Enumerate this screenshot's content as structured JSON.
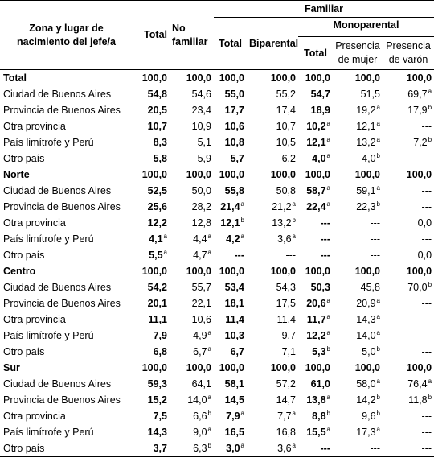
{
  "header": {
    "zona": "Zona y lugar de nacimiento del jefe/a",
    "total": "Total",
    "no_familiar": "No familiar",
    "familiar": "Familiar",
    "fam_total": "Total",
    "biparental": "Biparental",
    "monoparental": "Monoparental",
    "mono_total": "Total",
    "presencia_mujer": "Presencia de mujer",
    "presencia_varon": "Presencia de varón"
  },
  "rows": [
    {
      "label": "Total",
      "section": true,
      "cells": [
        [
          "100,0",
          ""
        ],
        [
          "100,0",
          ""
        ],
        [
          "100,0",
          ""
        ],
        [
          "100,0",
          ""
        ],
        [
          "100,0",
          ""
        ],
        [
          "100,0",
          ""
        ],
        [
          "100,0",
          ""
        ]
      ]
    },
    {
      "label": "Ciudad de Buenos Aires",
      "cells": [
        [
          "54,8",
          ""
        ],
        [
          "54,6",
          ""
        ],
        [
          "55,0",
          ""
        ],
        [
          "55,2",
          ""
        ],
        [
          "54,7",
          ""
        ],
        [
          "51,5",
          ""
        ],
        [
          "69,7",
          "a"
        ]
      ]
    },
    {
      "label": "Provincia de Buenos Aires",
      "cells": [
        [
          "20,5",
          ""
        ],
        [
          "23,4",
          ""
        ],
        [
          "17,7",
          ""
        ],
        [
          "17,4",
          ""
        ],
        [
          "18,9",
          ""
        ],
        [
          "19,2",
          "a"
        ],
        [
          "17,9",
          "b"
        ]
      ]
    },
    {
      "label": "Otra provincia",
      "cells": [
        [
          "10,7",
          ""
        ],
        [
          "10,9",
          ""
        ],
        [
          "10,6",
          ""
        ],
        [
          "10,7",
          ""
        ],
        [
          "10,2",
          "a"
        ],
        [
          "12,1",
          "a"
        ],
        [
          "---",
          ""
        ]
      ]
    },
    {
      "label": "País limítrofe y Perú",
      "cells": [
        [
          "8,3",
          ""
        ],
        [
          "5,1",
          ""
        ],
        [
          "10,8",
          ""
        ],
        [
          "10,5",
          ""
        ],
        [
          "12,1",
          "a"
        ],
        [
          "13,2",
          "a"
        ],
        [
          "7,2",
          "b"
        ]
      ]
    },
    {
      "label": "Otro país",
      "cells": [
        [
          "5,8",
          ""
        ],
        [
          "5,9",
          ""
        ],
        [
          "5,7",
          ""
        ],
        [
          "6,2",
          ""
        ],
        [
          "4,0",
          "a"
        ],
        [
          "4,0",
          "b"
        ],
        [
          "---",
          ""
        ]
      ]
    },
    {
      "label": "Norte",
      "section": true,
      "cells": [
        [
          "100,0",
          ""
        ],
        [
          "100,0",
          ""
        ],
        [
          "100,0",
          ""
        ],
        [
          "100,0",
          ""
        ],
        [
          "100,0",
          ""
        ],
        [
          "100,0",
          ""
        ],
        [
          "100,0",
          ""
        ]
      ]
    },
    {
      "label": "Ciudad de Buenos Aires",
      "cells": [
        [
          "52,5",
          ""
        ],
        [
          "50,0",
          ""
        ],
        [
          "55,8",
          ""
        ],
        [
          "50,8",
          ""
        ],
        [
          "58,7",
          "a"
        ],
        [
          "59,1",
          "a"
        ],
        [
          "---",
          ""
        ]
      ]
    },
    {
      "label": "Provincia de Buenos Aires",
      "cells": [
        [
          "25,6",
          ""
        ],
        [
          "28,2",
          ""
        ],
        [
          "21,4",
          "a"
        ],
        [
          "21,2",
          "a"
        ],
        [
          "22,4",
          "a"
        ],
        [
          "22,3",
          "b"
        ],
        [
          "---",
          ""
        ]
      ]
    },
    {
      "label": "Otra provincia",
      "cells": [
        [
          "12,2",
          ""
        ],
        [
          "12,8",
          ""
        ],
        [
          "12,1",
          "b"
        ],
        [
          "13,2",
          "b"
        ],
        [
          "---",
          ""
        ],
        [
          "---",
          ""
        ],
        [
          "0,0",
          ""
        ]
      ]
    },
    {
      "label": "País limítrofe y Perú",
      "cells": [
        [
          "4,1",
          "a"
        ],
        [
          "4,4",
          "a"
        ],
        [
          "4,2",
          "a"
        ],
        [
          "3,6",
          "a"
        ],
        [
          "---",
          ""
        ],
        [
          "---",
          ""
        ],
        [
          "---",
          ""
        ]
      ]
    },
    {
      "label": "Otro país",
      "cells": [
        [
          "5,5",
          "a"
        ],
        [
          "4,7",
          "a"
        ],
        [
          "---",
          ""
        ],
        [
          "---",
          ""
        ],
        [
          "---",
          ""
        ],
        [
          "---",
          ""
        ],
        [
          "0,0",
          ""
        ]
      ]
    },
    {
      "label": "Centro",
      "section": true,
      "cells": [
        [
          "100,0",
          ""
        ],
        [
          "100,0",
          ""
        ],
        [
          "100,0",
          ""
        ],
        [
          "100,0",
          ""
        ],
        [
          "100,0",
          ""
        ],
        [
          "100,0",
          ""
        ],
        [
          "100,0",
          ""
        ]
      ]
    },
    {
      "label": "Ciudad de Buenos Aires",
      "cells": [
        [
          "54,2",
          ""
        ],
        [
          "55,7",
          ""
        ],
        [
          "53,4",
          ""
        ],
        [
          "54,3",
          ""
        ],
        [
          "50,3",
          ""
        ],
        [
          "45,8",
          ""
        ],
        [
          "70,0",
          "b"
        ]
      ]
    },
    {
      "label": "Provincia de Buenos Aires",
      "cells": [
        [
          "20,1",
          ""
        ],
        [
          "22,1",
          ""
        ],
        [
          "18,1",
          ""
        ],
        [
          "17,5",
          ""
        ],
        [
          "20,6",
          "a"
        ],
        [
          "20,9",
          "a"
        ],
        [
          "---",
          ""
        ]
      ]
    },
    {
      "label": "Otra provincia",
      "cells": [
        [
          "11,1",
          ""
        ],
        [
          "10,6",
          ""
        ],
        [
          "11,4",
          ""
        ],
        [
          "11,4",
          ""
        ],
        [
          "11,7",
          "a"
        ],
        [
          "14,3",
          "a"
        ],
        [
          "---",
          ""
        ]
      ]
    },
    {
      "label": "País limítrofe y Perú",
      "cells": [
        [
          "7,9",
          ""
        ],
        [
          "4,9",
          "a"
        ],
        [
          "10,3",
          ""
        ],
        [
          "9,7",
          ""
        ],
        [
          "12,2",
          "a"
        ],
        [
          "14,0",
          "a"
        ],
        [
          "---",
          ""
        ]
      ]
    },
    {
      "label": "Otro país",
      "cells": [
        [
          "6,8",
          ""
        ],
        [
          "6,7",
          "a"
        ],
        [
          "6,7",
          ""
        ],
        [
          "7,1",
          ""
        ],
        [
          "5,3",
          "b"
        ],
        [
          "5,0",
          "b"
        ],
        [
          "---",
          ""
        ]
      ]
    },
    {
      "label": "Sur",
      "section": true,
      "cells": [
        [
          "100,0",
          ""
        ],
        [
          "100,0",
          ""
        ],
        [
          "100,0",
          ""
        ],
        [
          "100,0",
          ""
        ],
        [
          "100,0",
          ""
        ],
        [
          "100,0",
          ""
        ],
        [
          "100,0",
          ""
        ]
      ]
    },
    {
      "label": "Ciudad de Buenos Aires",
      "cells": [
        [
          "59,3",
          ""
        ],
        [
          "64,1",
          ""
        ],
        [
          "58,1",
          ""
        ],
        [
          "57,2",
          ""
        ],
        [
          "61,0",
          ""
        ],
        [
          "58,0",
          "a"
        ],
        [
          "76,4",
          "a"
        ]
      ]
    },
    {
      "label": "Provincia de Buenos Aires",
      "cells": [
        [
          "15,2",
          ""
        ],
        [
          "14,0",
          "a"
        ],
        [
          "14,5",
          ""
        ],
        [
          "14,7",
          ""
        ],
        [
          "13,8",
          "a"
        ],
        [
          "14,2",
          "b"
        ],
        [
          "11,8",
          "b"
        ]
      ]
    },
    {
      "label": "Otra provincia",
      "cells": [
        [
          "7,5",
          ""
        ],
        [
          "6,6",
          "b"
        ],
        [
          "7,9",
          "a"
        ],
        [
          "7,7",
          "a"
        ],
        [
          "8,8",
          "b"
        ],
        [
          "9,6",
          "b"
        ],
        [
          "---",
          ""
        ]
      ]
    },
    {
      "label": "País limítrofe y Perú",
      "cells": [
        [
          "14,3",
          ""
        ],
        [
          "9,0",
          "a"
        ],
        [
          "16,5",
          ""
        ],
        [
          "16,8",
          ""
        ],
        [
          "15,5",
          "a"
        ],
        [
          "17,3",
          "a"
        ],
        [
          "---",
          ""
        ]
      ]
    },
    {
      "label": "Otro país",
      "cells": [
        [
          "3,7",
          ""
        ],
        [
          "6,3",
          "b"
        ],
        [
          "3,0",
          "a"
        ],
        [
          "3,6",
          "a"
        ],
        [
          "---",
          ""
        ],
        [
          "---",
          ""
        ],
        [
          "---",
          ""
        ]
      ]
    }
  ]
}
